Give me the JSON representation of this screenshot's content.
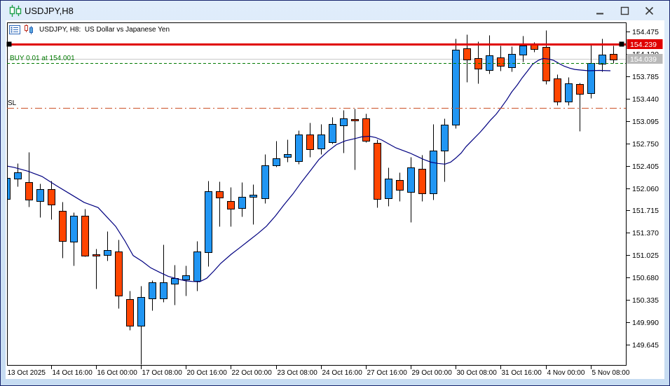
{
  "window": {
    "title": "USDJPY,H8"
  },
  "chart_header": {
    "text": "USDJPY, H8:  US Dollar vs Japanese Yen"
  },
  "chart_data": {
    "type": "candlestick",
    "symbol": "USDJPY",
    "timeframe": "H8",
    "description": "US Dollar vs Japanese Yen",
    "colors": {
      "bull": "#2196f3",
      "bear": "#ff4500",
      "outline": "#000000",
      "ma": "#000080",
      "background": "#ffffff"
    },
    "price_axis": {
      "ticks": [
        154.475,
        154.13,
        153.785,
        153.44,
        153.095,
        152.75,
        152.405,
        152.06,
        151.715,
        151.37,
        151.025,
        150.68,
        150.335,
        149.99,
        149.645
      ]
    },
    "time_axis": {
      "bars_per_label": 4,
      "labels": [
        "13 Oct 2025",
        "14 Oct 16:00",
        "16 Oct 00:00",
        "17 Oct 08:00",
        "20 Oct 16:00",
        "22 Oct 00:00",
        "23 Oct 08:00",
        "24 Oct 16:00",
        "27 Oct 16:00",
        "29 Oct 00:00",
        "30 Oct 08:00",
        "31 Oct 16:00",
        "4 Nov 00:00",
        "5 Nov 08:00"
      ]
    },
    "candles_ohlc": [
      [
        151.89,
        152.239,
        151.871,
        152.214
      ],
      [
        152.206,
        152.441,
        152.091,
        152.307
      ],
      [
        152.149,
        152.62,
        151.774,
        151.875
      ],
      [
        151.864,
        152.134,
        151.612,
        152.044
      ],
      [
        152.044,
        152.177,
        151.576,
        151.81
      ],
      [
        151.709,
        151.846,
        150.989,
        151.241
      ],
      [
        151.234,
        151.684,
        150.863,
        151.637
      ],
      [
        151.637,
        151.738,
        151.01,
        151.025
      ],
      [
        151.035,
        151.125,
        150.513,
        151.01
      ],
      [
        151.035,
        151.396,
        150.945,
        151.107
      ],
      [
        151.085,
        151.269,
        150.207,
        150.404
      ],
      [
        150.35,
        150.477,
        149.875,
        149.936
      ],
      [
        149.936,
        150.549,
        149.343,
        150.38
      ],
      [
        150.358,
        150.639,
        150.171,
        150.61
      ],
      [
        150.35,
        151.187,
        150.304,
        150.603
      ],
      [
        150.585,
        150.873,
        150.261,
        150.675
      ],
      [
        150.657,
        150.863,
        150.404,
        150.718
      ],
      [
        150.621,
        151.244,
        150.477,
        151.079
      ],
      [
        151.071,
        152.171,
        150.855,
        152.015
      ],
      [
        152.015,
        152.16,
        151.475,
        151.918
      ],
      [
        151.857,
        152.073,
        151.468,
        151.738
      ],
      [
        151.756,
        152.152,
        151.62,
        151.925
      ],
      [
        151.918,
        152.116,
        151.504,
        151.954
      ],
      [
        151.9,
        152.584,
        151.828,
        152.411
      ],
      [
        152.411,
        152.793,
        152.386,
        152.519
      ],
      [
        152.541,
        152.808,
        152.469,
        152.584
      ],
      [
        152.476,
        152.952,
        152.433,
        152.89
      ],
      [
        152.89,
        153.07,
        152.537,
        152.663
      ],
      [
        152.674,
        153.045,
        152.584,
        152.89
      ],
      [
        152.764,
        153.16,
        152.746,
        153.045
      ],
      [
        153.024,
        153.262,
        152.602,
        153.132
      ],
      [
        153.125,
        153.287,
        152.35,
        153.103
      ],
      [
        153.132,
        153.214,
        152.764,
        152.782
      ],
      [
        152.757,
        152.808,
        151.763,
        151.893
      ],
      [
        151.9,
        152.376,
        151.785,
        152.206
      ],
      [
        152.181,
        152.303,
        151.864,
        152.026
      ],
      [
        152.001,
        152.541,
        151.54,
        152.376
      ],
      [
        152.357,
        152.577,
        151.864,
        151.983
      ],
      [
        151.983,
        153.052,
        151.882,
        152.638
      ],
      [
        152.638,
        153.132,
        152.168,
        153.041
      ],
      [
        153.041,
        154.367,
        152.981,
        154.197
      ],
      [
        154.212,
        154.428,
        153.7,
        154.043
      ],
      [
        154.068,
        154.321,
        153.672,
        153.91
      ],
      [
        153.881,
        154.421,
        153.827,
        154.105
      ],
      [
        154.079,
        154.259,
        153.873,
        153.953
      ],
      [
        153.924,
        154.248,
        153.863,
        154.126
      ],
      [
        154.115,
        154.41,
        154.007,
        154.259
      ],
      [
        154.266,
        154.313,
        154.158,
        154.205
      ],
      [
        154.237,
        154.496,
        153.665,
        153.719
      ],
      [
        153.748,
        153.82,
        153.341,
        153.395
      ],
      [
        153.395,
        153.773,
        153.341,
        153.673
      ],
      [
        153.665,
        153.687,
        152.944,
        153.514
      ],
      [
        153.521,
        154.281,
        153.449,
        153.989
      ],
      [
        153.97,
        154.367,
        153.863,
        154.115
      ],
      [
        154.126,
        154.259,
        153.989,
        154.043
      ]
    ],
    "ma_line": {
      "points": [
        [
          0,
          152.42
        ],
        [
          20,
          152.38
        ],
        [
          40,
          152.32
        ],
        [
          60,
          152.24
        ],
        [
          80,
          152.1
        ],
        [
          100,
          151.97
        ],
        [
          120,
          151.84
        ],
        [
          140,
          151.76
        ],
        [
          152,
          151.62
        ],
        [
          165,
          151.47
        ],
        [
          178,
          151.25
        ],
        [
          190,
          151.02
        ],
        [
          203,
          150.93
        ],
        [
          215,
          150.83
        ],
        [
          228,
          150.76
        ],
        [
          240,
          150.7
        ],
        [
          253,
          150.66
        ],
        [
          265,
          150.63
        ],
        [
          275,
          150.62
        ],
        [
          285,
          150.615
        ],
        [
          295,
          150.67
        ],
        [
          305,
          150.78
        ],
        [
          315,
          150.9
        ],
        [
          330,
          151.04
        ],
        [
          342,
          151.14
        ],
        [
          355,
          151.25
        ],
        [
          368,
          151.36
        ],
        [
          380,
          151.47
        ],
        [
          393,
          151.63
        ],
        [
          405,
          151.8
        ],
        [
          418,
          151.97
        ],
        [
          430,
          152.15
        ],
        [
          443,
          152.33
        ],
        [
          455,
          152.5
        ],
        [
          468,
          152.63
        ],
        [
          480,
          152.73
        ],
        [
          493,
          152.79
        ],
        [
          505,
          152.82
        ],
        [
          516,
          152.85
        ],
        [
          527,
          152.86
        ],
        [
          536,
          152.84
        ],
        [
          545,
          152.8
        ],
        [
          555,
          152.74
        ],
        [
          565,
          152.68
        ],
        [
          575,
          152.64
        ],
        [
          585,
          152.6
        ],
        [
          595,
          152.55
        ],
        [
          605,
          152.5
        ],
        [
          615,
          152.46
        ],
        [
          625,
          152.44
        ],
        [
          635,
          152.43
        ],
        [
          643,
          152.46
        ],
        [
          650,
          152.52
        ],
        [
          658,
          152.6
        ],
        [
          665,
          152.7
        ],
        [
          675,
          152.81
        ],
        [
          685,
          152.92
        ],
        [
          693,
          153.02
        ],
        [
          700,
          153.11
        ],
        [
          708,
          153.2
        ],
        [
          715,
          153.3
        ],
        [
          723,
          153.42
        ],
        [
          730,
          153.54
        ],
        [
          738,
          153.65
        ],
        [
          745,
          153.76
        ],
        [
          753,
          153.87
        ],
        [
          760,
          153.97
        ],
        [
          768,
          154.03
        ],
        [
          775,
          154.06
        ],
        [
          783,
          154.05
        ],
        [
          790,
          154.03
        ],
        [
          798,
          153.98
        ],
        [
          805,
          153.94
        ],
        [
          813,
          153.91
        ],
        [
          820,
          153.89
        ],
        [
          830,
          153.88
        ],
        [
          840,
          153.87
        ],
        [
          855,
          153.875
        ],
        [
          871,
          153.87
        ]
      ]
    },
    "hlines": [
      {
        "name": "bid-price-line",
        "price": 154.039,
        "color": "#c9c9c9",
        "width": 1,
        "dash": "",
        "layer": "back",
        "tag": "154.039",
        "tag_bg": "#b9b9b9"
      },
      {
        "name": "resistance-line",
        "price": 154.239,
        "color": "#e00000",
        "width": 3,
        "dash": "",
        "layer": "front",
        "handles": true,
        "tag": "154.239",
        "tag_bg": "#e00000"
      },
      {
        "name": "buy-order-line",
        "price": 154.001,
        "color": "#007a00",
        "width": 1,
        "dash": "4 3",
        "layer": "front",
        "label": "BUY 0.01 at 154.001",
        "label_color": "#007a00"
      },
      {
        "name": "stop-loss-line",
        "price": 153.3,
        "color": "#cc5228",
        "width": 1,
        "dash": "10 4 2 4",
        "layer": "front",
        "label": "SL",
        "label_color": "#000000"
      }
    ]
  }
}
